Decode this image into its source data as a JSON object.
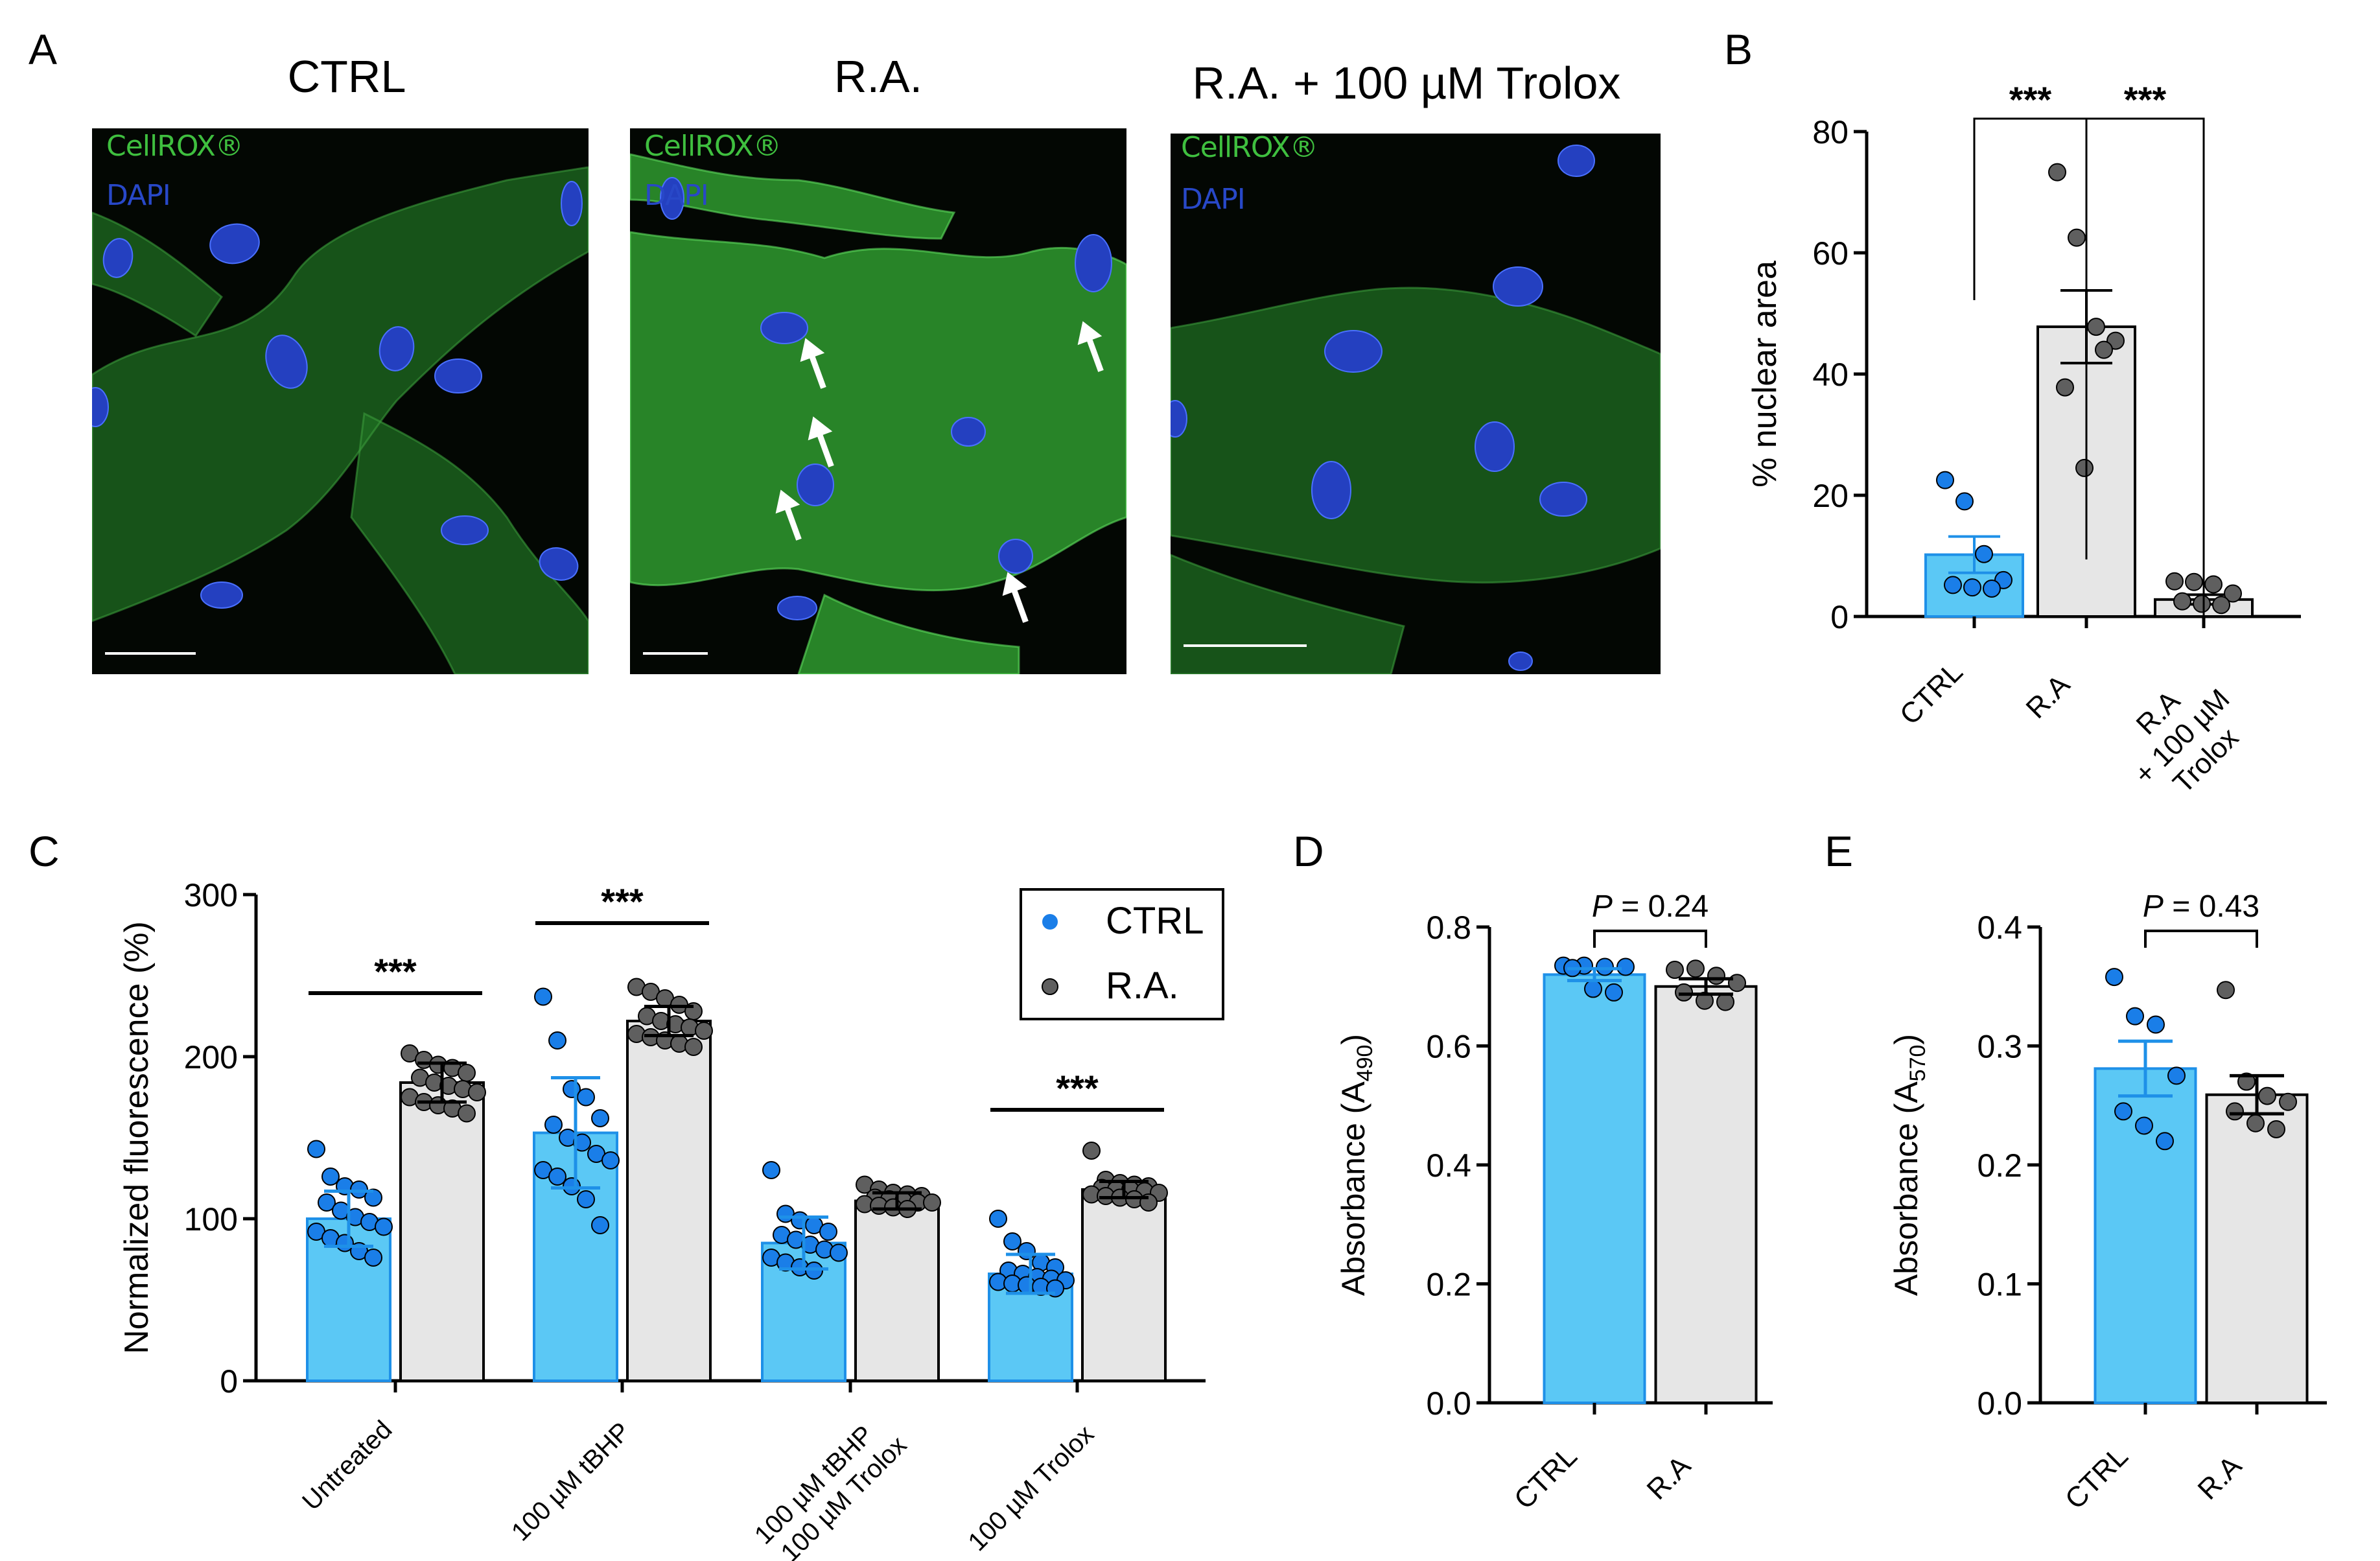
{
  "panels": {
    "A": {
      "letter": "A",
      "images": [
        {
          "title": "CTRL",
          "stains": [
            "CellROX®",
            "DAPI"
          ]
        },
        {
          "title": "R.A.",
          "stains": [
            "CellROX®",
            "DAPI"
          ]
        },
        {
          "title": "R.A. + 100 µM Trolox",
          "stains": [
            "CellROX®",
            "DAPI"
          ]
        }
      ]
    },
    "B": {
      "letter": "B"
    },
    "C": {
      "letter": "C"
    },
    "D": {
      "letter": "D"
    },
    "E": {
      "letter": "E"
    }
  },
  "colors": {
    "ctrl_fill": "#5bc8f5",
    "ctrl_stroke": "#1e90e8",
    "ctrl_dot": "#1a7ee8",
    "ra_fill": "#e6e6e6",
    "ra_stroke": "#000000",
    "ra_dot": "#5f5f5f",
    "cellrox_green": "#3fbf3f",
    "dapi_blue": "#2848c8"
  },
  "chart_data": [
    {
      "panel": "B",
      "type": "bar",
      "categories": [
        "CTRL",
        "R.A",
        "R.A\n+ 100 µM\nTrolox"
      ],
      "category_lines": [
        [
          "CTRL"
        ],
        [
          "R.A"
        ],
        [
          "R.A",
          "+ 100 µM",
          "Trolox"
        ]
      ],
      "ylabel": "% nuclear area",
      "ylim": [
        0,
        80
      ],
      "yticks": [
        0,
        20,
        40,
        60,
        80
      ],
      "bars": [
        {
          "mean": 10.2,
          "sem": 3.0,
          "points": [
            22.5,
            19.0,
            10.3,
            6.0,
            5.2,
            4.8,
            4.6
          ],
          "group": "ctrl"
        },
        {
          "mean": 47.8,
          "sem": 6.0,
          "points": [
            73.3,
            62.5,
            47.8,
            45.5,
            37.8,
            24.5,
            44.0
          ],
          "group": "ra"
        },
        {
          "mean": 2.8,
          "sem": 0.8,
          "points": [
            5.8,
            5.7,
            5.3,
            3.8,
            2.5,
            2.1,
            1.9
          ],
          "group": "ra"
        }
      ],
      "significance": [
        {
          "from": 0,
          "to": 1,
          "label": "***"
        },
        {
          "from": 1,
          "to": 2,
          "label": "***"
        }
      ]
    },
    {
      "panel": "C",
      "type": "bar",
      "categories": [
        "Untreated",
        "100 µM tBHP",
        "100 µM tBHP\n+ 100 µM Trolox",
        "100 µM Trolox"
      ],
      "category_lines": [
        [
          "Untreated"
        ],
        [
          "100 µM tBHP"
        ],
        [
          "100 µM tBHP",
          "+ 100 µM Trolox"
        ],
        [
          "100 µM Trolox"
        ]
      ],
      "ylabel": "Normalized fluorescence (%)",
      "ylim": [
        0,
        300
      ],
      "yticks": [
        0,
        100,
        200,
        300
      ],
      "legend": {
        "position": "top-right",
        "entries": [
          "CTRL",
          "R.A."
        ]
      },
      "series": [
        {
          "name": "CTRL",
          "means": [
            100,
            153,
            85,
            66
          ],
          "sd": [
            17,
            34,
            16,
            12
          ],
          "points": [
            [
              143,
              126,
              120,
              118,
              113,
              110,
              105,
              101,
              98,
              95,
              92,
              88,
              85,
              80,
              76
            ],
            [
              237,
              210,
              180,
              175,
              162,
              158,
              150,
              147,
              140,
              136,
              130,
              126,
              120,
              112,
              96
            ],
            [
              130,
              103,
              99,
              96,
              92,
              90,
              87,
              84,
              81,
              79,
              76,
              73,
              70,
              68
            ],
            [
              100,
              86,
              80,
              73,
              70,
              68,
              66,
              64,
              63,
              62,
              61,
              60,
              59,
              58,
              57
            ]
          ]
        },
        {
          "name": "R.A.",
          "means": [
            184,
            222,
            111,
            118
          ],
          "sd": [
            12,
            9,
            5,
            5
          ],
          "points": [
            [
              202,
              198,
              195,
              193,
              190,
              187,
              184,
              182,
              180,
              178,
              175,
              172,
              170,
              168,
              165
            ],
            [
              243,
              240,
              236,
              232,
              228,
              225,
              222,
              220,
              218,
              216,
              214,
              212,
              210,
              208,
              206
            ],
            [
              121,
              118,
              116,
              115,
              114,
              113,
              112,
              111,
              110,
              110,
              109,
              108,
              107,
              106
            ],
            [
              142,
              124,
              122,
              121,
              120,
              119,
              118,
              118,
              117,
              116,
              115,
              114,
              113,
              112,
              110
            ]
          ]
        }
      ],
      "significance": [
        {
          "group": 0,
          "label": "***"
        },
        {
          "group": 1,
          "label": "***"
        },
        {
          "group": 3,
          "label": "***"
        }
      ]
    },
    {
      "panel": "D",
      "type": "bar",
      "categories": [
        "CTRL",
        "R.A"
      ],
      "ylabel": "Absorbance (A",
      "ylabel_sub": "490",
      "ylabel_end": ")",
      "ylim": [
        0,
        0.8
      ],
      "yticks": [
        "0.0",
        "0.2",
        "0.4",
        "0.6",
        "0.8"
      ],
      "annotation_p": "P",
      "annotation_rest": " = 0.24",
      "bars": [
        {
          "mean": 0.72,
          "sem": 0.01,
          "points": [
            0.735,
            0.735,
            0.733,
            0.733,
            0.731,
            0.696,
            0.69
          ],
          "group": "ctrl"
        },
        {
          "mean": 0.7,
          "sem": 0.013,
          "points": [
            0.728,
            0.73,
            0.718,
            0.706,
            0.69,
            0.676,
            0.674
          ],
          "group": "ra"
        }
      ]
    },
    {
      "panel": "E",
      "type": "bar",
      "categories": [
        "CTRL",
        "R.A"
      ],
      "ylabel": "Absorbance (A",
      "ylabel_sub": "570",
      "ylabel_end": ")",
      "ylim": [
        0,
        0.4
      ],
      "yticks": [
        "0.0",
        "0.1",
        "0.2",
        "0.3",
        "0.4"
      ],
      "annotation_p": "P",
      "annotation_rest": " = 0.43",
      "bars": [
        {
          "mean": 0.281,
          "sem": 0.023,
          "points": [
            0.358,
            0.325,
            0.318,
            0.275,
            0.245,
            0.233,
            0.22
          ],
          "group": "ctrl"
        },
        {
          "mean": 0.259,
          "sem": 0.016,
          "points": [
            0.347,
            0.27,
            0.258,
            0.253,
            0.245,
            0.235,
            0.23
          ],
          "group": "ra"
        }
      ]
    }
  ]
}
